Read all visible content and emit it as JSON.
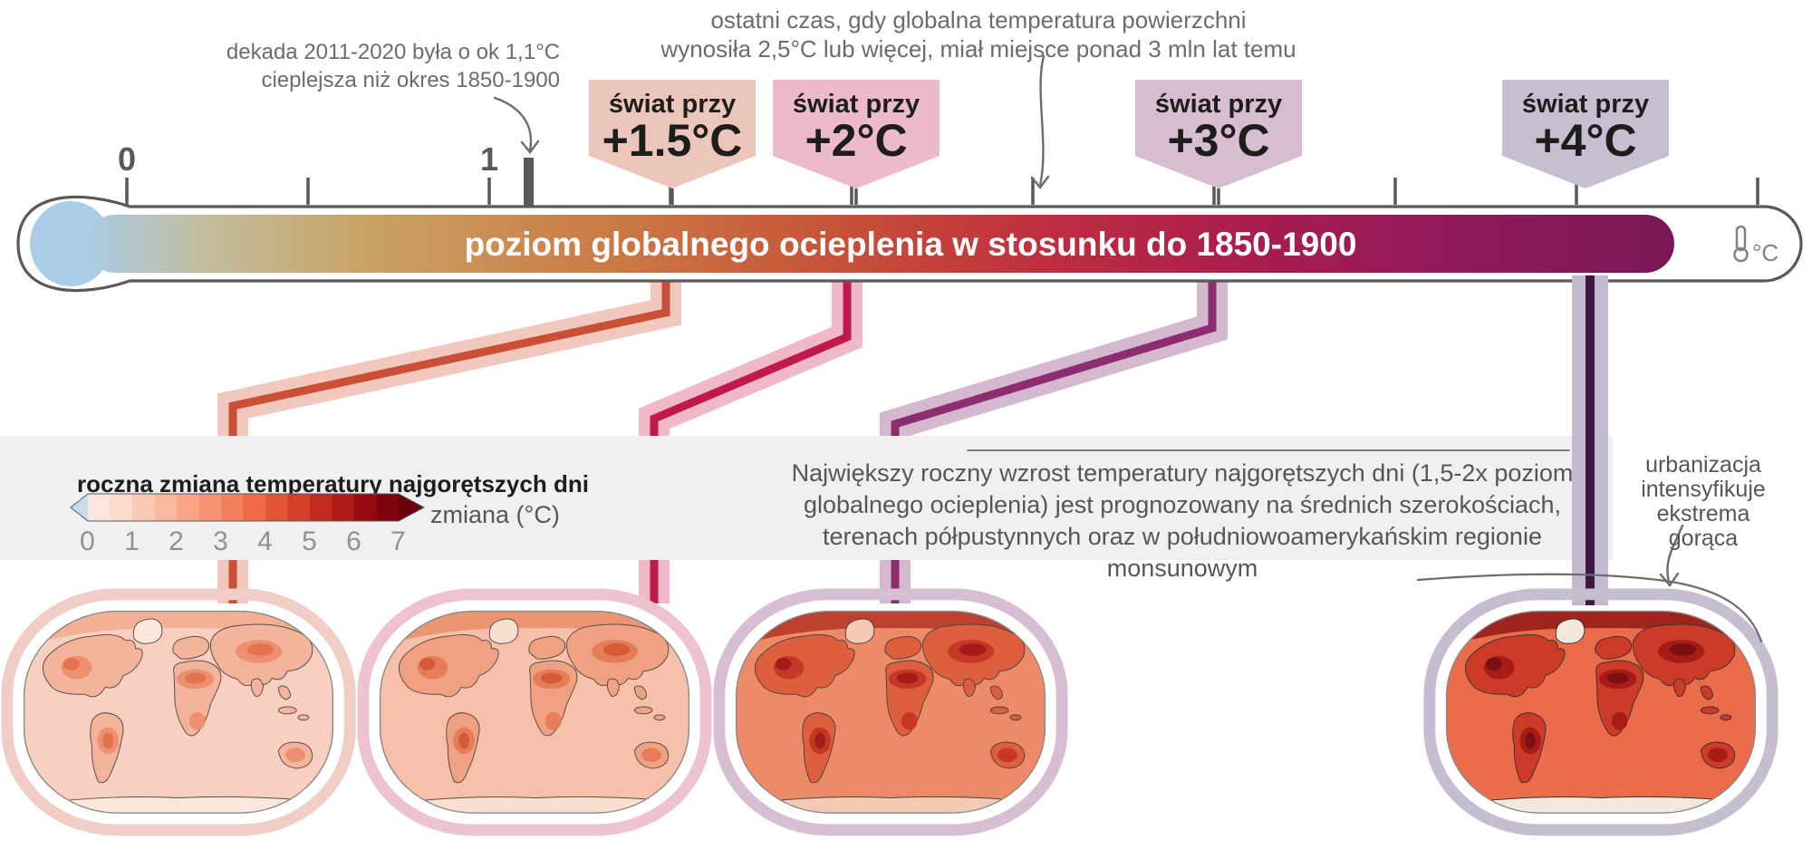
{
  "thermometer": {
    "title": "poziom globalnego ocieplenia w stosunku do 1850-1900",
    "unit_label": "°C",
    "labels": [
      "0",
      "1"
    ],
    "scale": {
      "unit": "°C",
      "labeled_ticks": [
        0,
        1
      ],
      "tick_step": 0.5,
      "range": [
        0,
        4.5
      ],
      "decade_2011_2020_marker": 1.1
    },
    "bulb_color": "#abcde8",
    "outline_color": "#58595b",
    "gradient": [
      [
        "0%",
        "#a9cbe7"
      ],
      [
        "7%",
        "#c2bda2"
      ],
      [
        "18%",
        "#c9a263"
      ],
      [
        "33%",
        "#cb7a45"
      ],
      [
        "48%",
        "#c65038"
      ],
      [
        "60%",
        "#bf2f3f"
      ],
      [
        "73%",
        "#aa1d4e"
      ],
      [
        "86%",
        "#90195b"
      ],
      [
        "100%",
        "#7a1858"
      ]
    ]
  },
  "annotations": {
    "decade_line1": "dekada 2011-2020 była o ok 1,1°C",
    "decade_line2": "cieplejsza niż okres 1850-1900",
    "pliocene_line1": "ostatni czas, gdy globalna temperatura powierzchni",
    "pliocene_line2": "wynosiła 2,5°C lub więcej, miał miejsce ponad 3 mln lat temu",
    "urban_line1": "urbanizacja",
    "urban_line2": "intensyfikuje",
    "urban_line3": "ekstrema gorąca"
  },
  "paragraph": "Największy roczny wzrost temperatury najgorętszych dni (1,5-2x poziom globalnego ocieplenia) jest prognozowany na średnich szerokościach, terenach półpustynnych oraz w południowoamerykańskim regionie monsunowym",
  "legend": {
    "title": "roczna zmiana temperatury najgorętszych dni",
    "axis_label": "zmiana (°C)",
    "ticks": [
      "0",
      "1",
      "2",
      "3",
      "4",
      "5",
      "6",
      "7"
    ],
    "range": [
      0,
      7
    ],
    "below_color": "#c8ddf0",
    "above_color": "#67000b",
    "colors": [
      "#fde8df",
      "#fcdccd",
      "#fbcab5",
      "#fab89e",
      "#f9a588",
      "#f79272",
      "#f47f5d",
      "#ee6a4a",
      "#e1553a",
      "#d2402b",
      "#c02d1e",
      "#ac1a15",
      "#950b10",
      "#7d020c"
    ]
  },
  "levels": [
    {
      "small": "świat przy",
      "temp": "+1.5°C",
      "warming_c": 1.5,
      "colors": {
        "badge": "#ecc6bb",
        "ribbon_outer": "#f2c8be",
        "ribbon_core": "#c94f35"
      },
      "map_colors": {
        "ring": "#f0cec6",
        "ocean": "#f8cfc0",
        "land": "#f4b49c",
        "hot": "#ec9070",
        "hot2": "#e3724f",
        "ice": "#fbe7dc",
        "arctic": "#f0a988",
        "coast": "#5b4f49"
      }
    },
    {
      "small": "świat przy",
      "temp": "+2°C",
      "warming_c": 2,
      "colors": {
        "badge": "#ecbac9",
        "ribbon_outer": "#efb9c9",
        "ribbon_core": "#c2194b"
      },
      "map_colors": {
        "ring": "#eec3d0",
        "ocean": "#f6c0ab",
        "land": "#f0a182",
        "hot": "#e57e58",
        "hot2": "#d55a3a",
        "ice": "#fadfd0",
        "arctic": "#e88a64",
        "coast": "#5b4f49"
      }
    },
    {
      "small": "świat przy",
      "temp": "+3°C",
      "warming_c": 3,
      "colors": {
        "badge": "#d7bdd0",
        "ribbon_outer": "#d3b8ce",
        "ribbon_core": "#8e2c72"
      },
      "map_colors": {
        "ring": "#d6bed3",
        "ocean": "#ed8a67",
        "land": "#de5f3e",
        "hot": "#c63726",
        "hot2": "#a31b1a",
        "ice": "#f5cab4",
        "arctic": "#b22d20",
        "coast": "#4e443e"
      }
    },
    {
      "small": "świat przy",
      "temp": "+4°C",
      "warming_c": 4,
      "colors": {
        "badge": "#c8bed2",
        "ribbon_outer": "#c4bad0",
        "ribbon_core": "#3f1848"
      },
      "map_colors": {
        "ring": "#c7bdd1",
        "ocean": "#ea6c4b",
        "land": "#cc3a28",
        "hot": "#a81c18",
        "hot2": "#7c0f12",
        "ice": "#f6e7de",
        "arctic": "#8c1313",
        "coast": "#3c3431"
      }
    }
  ]
}
